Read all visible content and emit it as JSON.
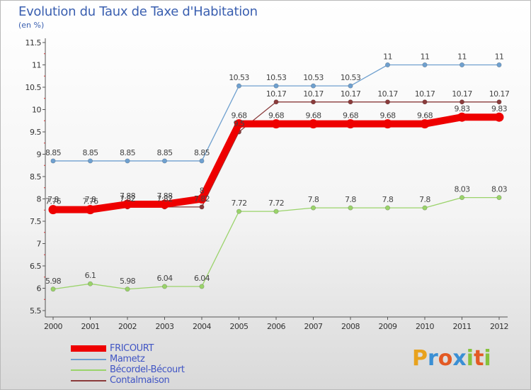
{
  "header": {
    "title": "Evolution du Taux de Taxe d'Habitation",
    "unit": "(en %)"
  },
  "logo": {
    "text": "Proxiti",
    "letters": [
      {
        "char": "P",
        "color": "#e8a21d"
      },
      {
        "char": "r",
        "color": "#3a8fd4"
      },
      {
        "char": "o",
        "color": "#e35a24"
      },
      {
        "char": "x",
        "color": "#3a8fd4"
      },
      {
        "char": "i",
        "color": "#86c23c"
      },
      {
        "char": "t",
        "color": "#e35a24"
      },
      {
        "char": "i",
        "color": "#86c23c"
      }
    ]
  },
  "chart_data": {
    "type": "line",
    "title": "Evolution du Taux de Taxe d'Habitation",
    "ylabel": "(en %)",
    "xlabel": "",
    "x": [
      "2000",
      "2001",
      "2002",
      "2003",
      "2004",
      "2005",
      "2006",
      "2007",
      "2008",
      "2009",
      "2010",
      "2011",
      "2012"
    ],
    "ylim": [
      5.5,
      11.5
    ],
    "yticks": [
      "5.5",
      "6",
      "6.5",
      "7",
      "7.5",
      "8",
      "8.5",
      "9",
      "9.5",
      "10",
      "10.5",
      "11",
      "11.5"
    ],
    "grid": false,
    "legend_position": "bottom-left",
    "series": [
      {
        "name": "FRICOURT",
        "color": "#ee0000",
        "emphasis": true,
        "values": [
          7.76,
          7.76,
          7.88,
          7.88,
          8,
          9.68,
          9.68,
          9.68,
          9.68,
          9.68,
          9.68,
          9.83,
          9.83
        ],
        "labels": [
          "7.76",
          "7.76",
          "7.88",
          "7.88",
          "8",
          "9.68",
          "9.68",
          "9.68",
          "9.68",
          "9.68",
          "9.68",
          "9.83",
          "9.83"
        ]
      },
      {
        "name": "Mametz",
        "color": "#6fa0cf",
        "values": [
          8.85,
          8.85,
          8.85,
          8.85,
          8.85,
          10.53,
          10.53,
          10.53,
          10.53,
          11,
          11,
          11,
          11
        ],
        "labels": [
          "8.85",
          "8.85",
          "8.85",
          "8.85",
          "8.85",
          "10.53",
          "10.53",
          "10.53",
          "10.53",
          "11",
          "11",
          "11",
          "11"
        ]
      },
      {
        "name": "Bécordel-Bécourt",
        "color": "#9ad36a",
        "values": [
          5.98,
          6.1,
          5.98,
          6.04,
          6.04,
          7.72,
          7.72,
          7.8,
          7.8,
          7.8,
          7.8,
          8.03,
          8.03
        ],
        "labels": [
          "5.98",
          "6.1",
          "5.98",
          "6.04",
          "6.04",
          "7.72",
          "7.72",
          "7.8",
          "7.8",
          "7.8",
          "7.8",
          "8.03",
          "8.03"
        ]
      },
      {
        "name": "Contalmaison",
        "color": "#8a3b3b",
        "values": [
          7.8,
          7.8,
          7.82,
          7.82,
          7.82,
          9.5,
          10.17,
          10.17,
          10.17,
          10.17,
          10.17,
          10.17,
          10.17
        ],
        "labels": [
          "7.8",
          "7.8",
          "7.82",
          "7.82",
          "7.82",
          "9.5",
          "10.17",
          "10.17",
          "10.17",
          "10.17",
          "10.17",
          "10.17",
          "10.17"
        ]
      }
    ]
  }
}
